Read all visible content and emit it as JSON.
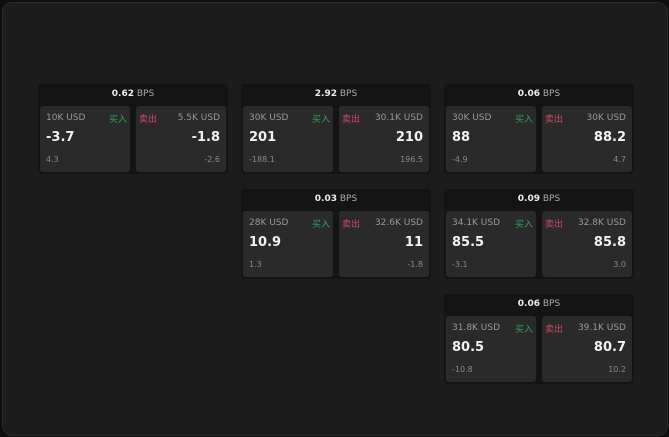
{
  "unit": "BPS",
  "buy_label": "买入",
  "sell_label": "卖出",
  "colors": {
    "buy": "#2fa35c",
    "sell": "#d4446a"
  },
  "cards": [
    {
      "spread": "0.62",
      "buy": {
        "size": "10K USD",
        "price": "-3.7",
        "change": "4.3"
      },
      "sell": {
        "size": "5.5K USD",
        "price": "-1.8",
        "change": "-2.6"
      }
    },
    {
      "spread": "2.92",
      "buy": {
        "size": "30K USD",
        "price": "201",
        "change": "-188.1"
      },
      "sell": {
        "size": "30.1K USD",
        "price": "210",
        "change": "196.5"
      }
    },
    {
      "spread": "0.06",
      "buy": {
        "size": "30K USD",
        "price": "88",
        "change": "-4.9"
      },
      "sell": {
        "size": "30K USD",
        "price": "88.2",
        "change": "4.7"
      }
    },
    {
      "spread": "0.03",
      "buy": {
        "size": "28K USD",
        "price": "10.9",
        "change": "1.3"
      },
      "sell": {
        "size": "32.6K USD",
        "price": "11",
        "change": "-1.8"
      }
    },
    {
      "spread": "0.09",
      "buy": {
        "size": "34.1K USD",
        "price": "85.5",
        "change": "-3.1"
      },
      "sell": {
        "size": "32.8K USD",
        "price": "85.8",
        "change": "3.0"
      }
    },
    {
      "spread": "0.06",
      "buy": {
        "size": "31.8K USD",
        "price": "80.5",
        "change": "-10.8"
      },
      "sell": {
        "size": "39.1K USD",
        "price": "80.7",
        "change": "10.2"
      }
    }
  ]
}
